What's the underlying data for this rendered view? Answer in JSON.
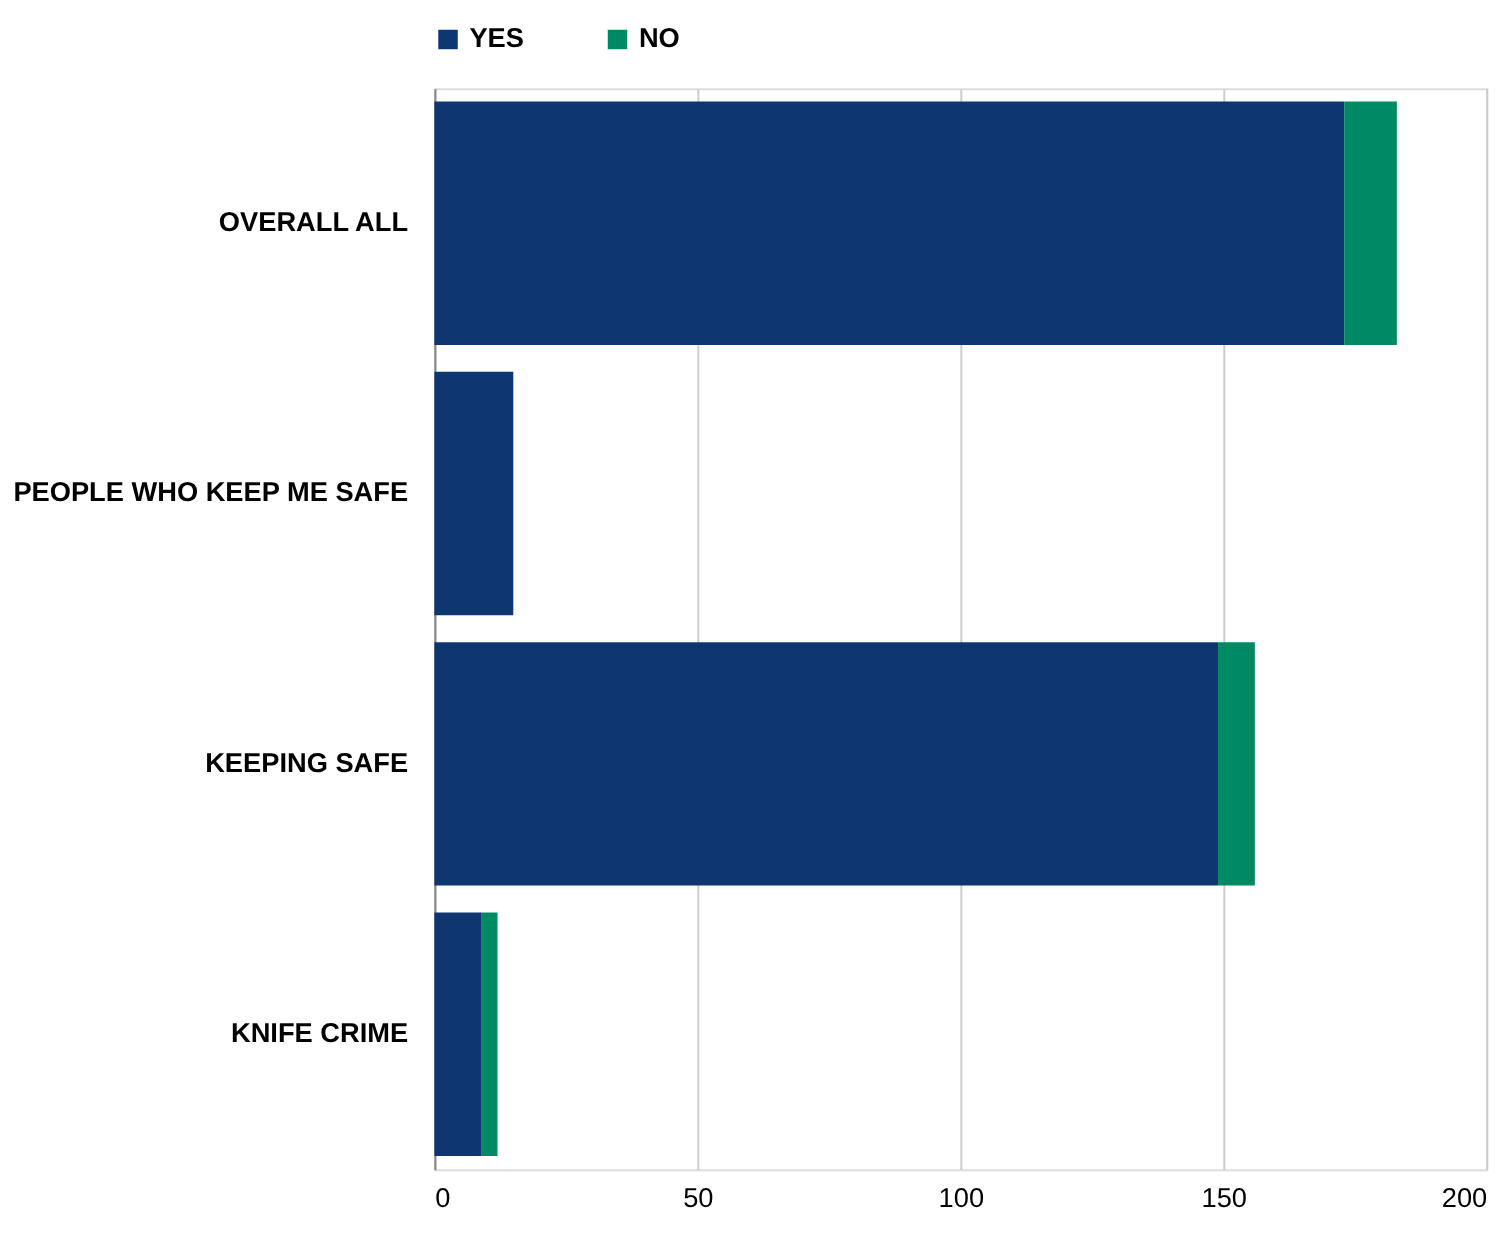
{
  "chart_data": {
    "type": "bar",
    "orientation": "horizontal",
    "stacked": true,
    "categories": [
      "OVERALL ALL",
      "PEOPLE WHO KEEP ME SAFE",
      "KEEPING SAFE",
      "KNIFE CRIME"
    ],
    "series": [
      {
        "name": "YES",
        "color": "#0e3671",
        "values": [
          173,
          15,
          149,
          9
        ]
      },
      {
        "name": "NO",
        "color": "#008a63",
        "values": [
          10,
          null,
          7,
          3
        ]
      }
    ],
    "xlim": [
      0,
      200
    ],
    "xticks": [
      0,
      50,
      100,
      150,
      200
    ],
    "grid": "x",
    "legend": "top"
  }
}
